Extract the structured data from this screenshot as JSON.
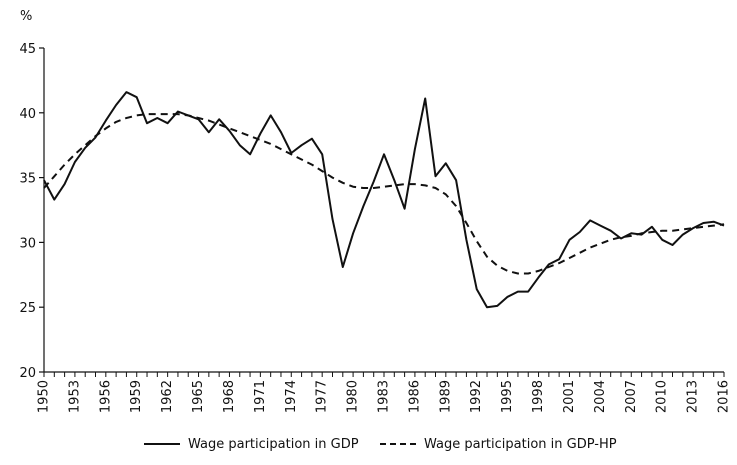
{
  "chart_data": {
    "type": "line",
    "title": "",
    "xlabel": "",
    "ylabel": "%",
    "ylim": [
      20,
      45
    ],
    "yticks": [
      20,
      25,
      30,
      35,
      40,
      45
    ],
    "xlim": [
      1950,
      2016
    ],
    "xticks": [
      1950,
      1953,
      1956,
      1959,
      1962,
      1965,
      1968,
      1971,
      1974,
      1977,
      1980,
      1983,
      1986,
      1989,
      1992,
      1995,
      1998,
      2001,
      2004,
      2007,
      2010,
      2013,
      2016
    ],
    "grid": false,
    "legend_position": "bottom",
    "series": [
      {
        "name": "Wage participation in GDP",
        "style": "solid",
        "color": "#111111",
        "x": [
          1950,
          1951,
          1952,
          1953,
          1954,
          1955,
          1956,
          1957,
          1958,
          1959,
          1960,
          1961,
          1962,
          1963,
          1964,
          1965,
          1966,
          1967,
          1968,
          1969,
          1970,
          1971,
          1972,
          1973,
          1974,
          1975,
          1976,
          1977,
          1978,
          1979,
          1980,
          1981,
          1982,
          1983,
          1984,
          1985,
          1986,
          1987,
          1988,
          1989,
          1990,
          1991,
          1992,
          1993,
          1994,
          1995,
          1996,
          1997,
          1998,
          1999,
          2000,
          2001,
          2002,
          2003,
          2004,
          2005,
          2006,
          2007,
          2008,
          2009,
          2010,
          2011,
          2012,
          2013,
          2014,
          2015,
          2016
        ],
        "y": [
          34.8,
          33.3,
          34.5,
          36.2,
          37.3,
          38.1,
          39.4,
          40.6,
          41.6,
          41.2,
          39.2,
          39.6,
          39.2,
          40.1,
          39.8,
          39.5,
          38.5,
          39.5,
          38.6,
          37.5,
          36.8,
          38.4,
          39.8,
          38.5,
          36.9,
          37.5,
          38.0,
          36.8,
          31.8,
          28.1,
          30.7,
          32.8,
          34.7,
          36.8,
          34.8,
          32.6,
          37.2,
          41.1,
          35.1,
          36.1,
          34.8,
          30.2,
          26.4,
          25.0,
          25.1,
          25.8,
          26.2,
          26.2,
          27.3,
          28.3,
          28.7,
          30.2,
          30.8,
          31.7,
          31.3,
          30.9,
          30.3,
          30.7,
          30.6,
          31.2,
          30.2,
          29.8,
          30.6,
          31.1,
          31.5,
          31.6,
          31.3
        ]
      },
      {
        "name": "Wage participation in GDP-HP",
        "style": "dashed",
        "color": "#111111",
        "x": [
          1950,
          1951,
          1952,
          1953,
          1954,
          1955,
          1956,
          1957,
          1958,
          1959,
          1960,
          1961,
          1962,
          1963,
          1964,
          1965,
          1966,
          1967,
          1968,
          1969,
          1970,
          1971,
          1972,
          1973,
          1974,
          1975,
          1976,
          1977,
          1978,
          1979,
          1980,
          1981,
          1982,
          1983,
          1984,
          1985,
          1986,
          1987,
          1988,
          1989,
          1990,
          1991,
          1992,
          1993,
          1994,
          1995,
          1996,
          1997,
          1998,
          1999,
          2000,
          2001,
          2002,
          2003,
          2004,
          2005,
          2006,
          2007,
          2008,
          2009,
          2010,
          2011,
          2012,
          2013,
          2014,
          2015,
          2016
        ],
        "y": [
          34.2,
          35.1,
          36.0,
          36.8,
          37.5,
          38.2,
          38.8,
          39.3,
          39.6,
          39.8,
          39.9,
          39.9,
          39.9,
          39.9,
          39.8,
          39.6,
          39.4,
          39.1,
          38.8,
          38.5,
          38.2,
          37.9,
          37.6,
          37.2,
          36.8,
          36.4,
          36.0,
          35.5,
          35.0,
          34.6,
          34.3,
          34.2,
          34.2,
          34.3,
          34.4,
          34.5,
          34.5,
          34.4,
          34.2,
          33.7,
          32.8,
          31.5,
          30.1,
          28.9,
          28.2,
          27.8,
          27.6,
          27.6,
          27.8,
          28.1,
          28.4,
          28.8,
          29.2,
          29.6,
          29.9,
          30.2,
          30.4,
          30.5,
          30.7,
          30.8,
          30.9,
          30.9,
          31.0,
          31.1,
          31.2,
          31.3,
          31.4
        ]
      }
    ]
  },
  "legend": {
    "solid_label": "Wage participation in GDP",
    "dashed_label": "Wage participation in GDP-HP"
  }
}
